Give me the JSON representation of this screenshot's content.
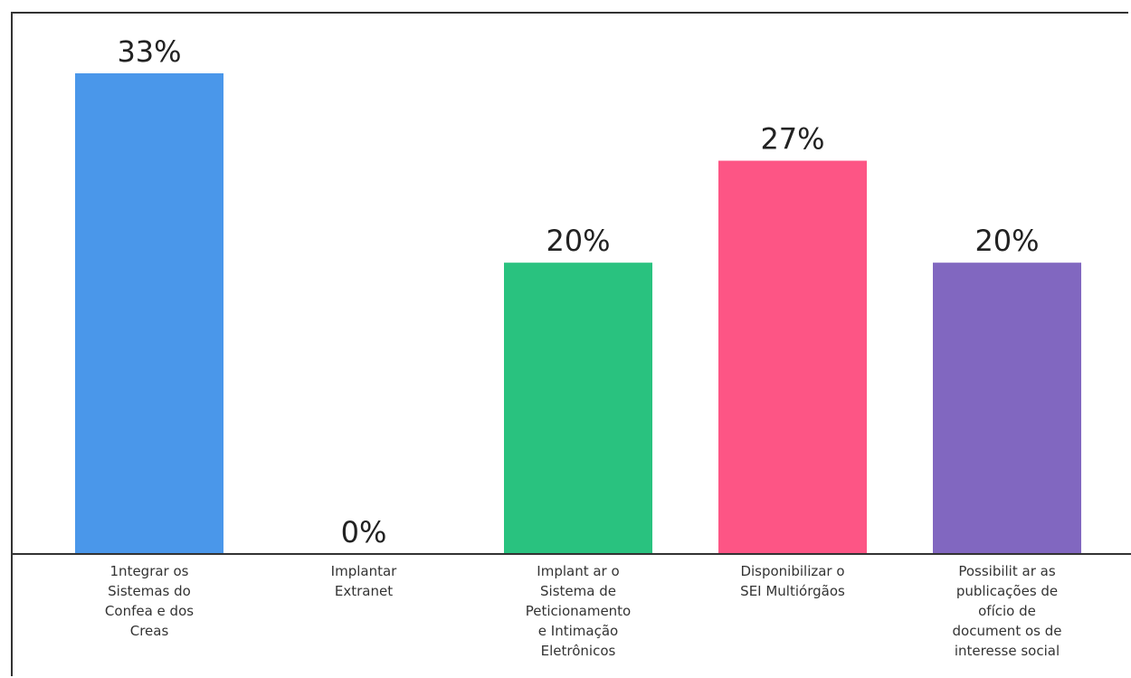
{
  "chart_data": {
    "type": "bar",
    "categories": [
      [
        "1ntegrar os",
        "Sistemas do",
        "Confea e dos",
        "Creas"
      ],
      [
        "Implantar",
        "Extranet"
      ],
      [
        "Implant ar o",
        "Sistema de",
        "Peticionamento",
        "e Intimação",
        "Eletrônicos"
      ],
      [
        "Disponibilizar o",
        "SEI Multiórgãos"
      ],
      [
        "Possibilit ar as",
        "publicações de",
        "ofício de",
        "document os de",
        "interesse social"
      ]
    ],
    "values": [
      33,
      0,
      20,
      27,
      20
    ],
    "value_labels": [
      "33%",
      "0%",
      "20%",
      "27%",
      "20%"
    ],
    "colors": [
      "#4a97ea",
      "#4a97ea",
      "#29c27f",
      "#fd5585",
      "#8167c0"
    ],
    "ylim": [
      0,
      33
    ],
    "grid": false,
    "legend": "none"
  }
}
